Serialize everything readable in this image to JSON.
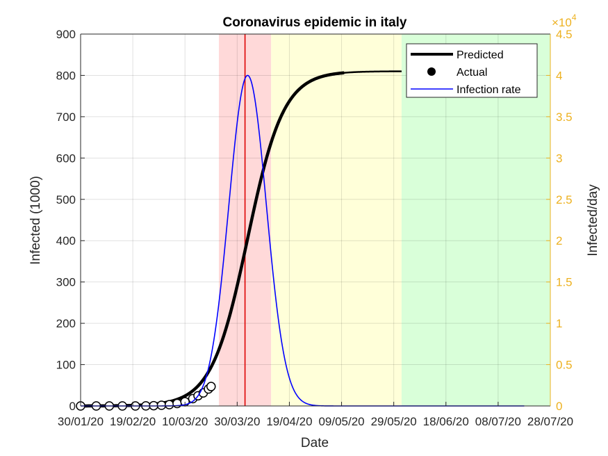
{
  "chart_data": {
    "type": "line",
    "title": "Coronavirus epidemic in italy",
    "xlabel": "Date",
    "ylabel": "Infected (1000)",
    "ylabel_right": "Infected/day",
    "right_exponent": "×10",
    "right_exponent_power": "4",
    "x_ticks": [
      "30/01/20",
      "19/02/20",
      "10/03/20",
      "30/03/20",
      "19/04/20",
      "09/05/20",
      "29/05/20",
      "18/06/20",
      "08/07/20",
      "28/07/20"
    ],
    "x_range": [
      "2020-01-30",
      "2020-07-28"
    ],
    "ylim": [
      0,
      900
    ],
    "y_ticks": [
      "0",
      "100",
      "200",
      "300",
      "400",
      "500",
      "600",
      "700",
      "800",
      "900"
    ],
    "ylim_right": [
      0,
      45000
    ],
    "y_ticks_right": [
      "0",
      "0.5",
      "1",
      "1.5",
      "2",
      "2.5",
      "3",
      "3.5",
      "4",
      "4.5"
    ],
    "grid": true,
    "legend": {
      "position": "top-right",
      "entries": [
        "Predicted",
        "Actual",
        "Infection rate"
      ]
    },
    "shaded_regions": [
      {
        "start": "2020-03-23",
        "end": "2020-04-12",
        "color": "#ffd9d9"
      },
      {
        "start": "2020-04-12",
        "end": "2020-06-01",
        "color": "#ffffd9"
      },
      {
        "start": "2020-06-01",
        "end": "2020-07-28",
        "color": "#d9ffd9"
      }
    ],
    "vertical_line": {
      "date": "2020-04-02",
      "color": "#dd0000"
    },
    "series": [
      {
        "name": "Predicted",
        "axis": "left",
        "style": "line",
        "color": "#000000",
        "model": "logistic",
        "K": 810,
        "r": 0.145,
        "t0": "2020-04-03",
        "x_start": "2020-01-30",
        "x_end": "2020-06-01",
        "bold_until": "2020-05-10"
      },
      {
        "name": "Actual",
        "axis": "left",
        "style": "markers",
        "color": "#000000",
        "x": [
          "2020-01-30",
          "2020-02-05",
          "2020-02-10",
          "2020-02-15",
          "2020-02-20",
          "2020-02-24",
          "2020-02-27",
          "2020-03-01",
          "2020-03-04",
          "2020-03-07",
          "2020-03-10",
          "2020-03-13",
          "2020-03-15",
          "2020-03-17",
          "2020-03-19",
          "2020-03-20"
        ],
        "y": [
          0,
          0,
          0,
          0,
          0,
          0.2,
          0.7,
          1.7,
          3.1,
          5.9,
          10.1,
          17.7,
          24.7,
          31.5,
          41.0,
          47.0
        ]
      },
      {
        "name": "Infection rate",
        "axis": "right",
        "style": "line",
        "color": "#0000ff",
        "model": "gaussian",
        "peak": 40000,
        "peak_date": "2020-04-03",
        "sigma_days": 7.2,
        "x_start": "2020-01-30",
        "x_end": "2020-07-18"
      }
    ]
  }
}
